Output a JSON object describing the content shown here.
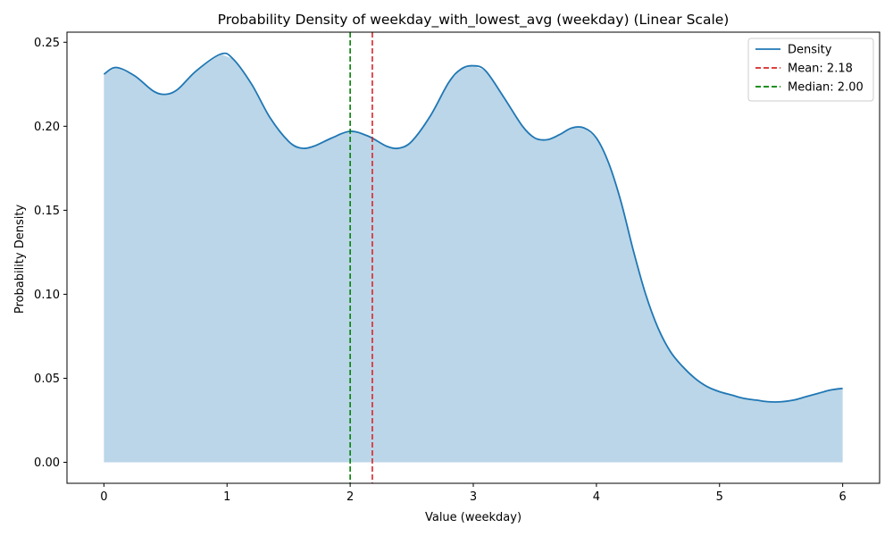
{
  "chart_data": {
    "type": "area",
    "title": "Probability Density of weekday_with_lowest_avg (weekday) (Linear Scale)",
    "xlabel": "Value (weekday)",
    "ylabel": "Probability Density",
    "xlim": [
      -0.3,
      6.3
    ],
    "ylim": [
      -0.0125,
      0.256
    ],
    "x_ticks": [
      0,
      1,
      2,
      3,
      4,
      5,
      6
    ],
    "y_ticks": [
      0.0,
      0.05,
      0.1,
      0.15,
      0.2,
      0.25
    ],
    "x_tick_labels": [
      "0",
      "1",
      "2",
      "3",
      "4",
      "5",
      "6"
    ],
    "y_tick_labels": [
      "0.00",
      "0.05",
      "0.10",
      "0.15",
      "0.20",
      "0.25"
    ],
    "grid": false,
    "legend_position": "top-right",
    "series": [
      {
        "name": "Density",
        "color": "#1f77b4",
        "fill_color": "#bbd6e8",
        "x": [
          0,
          0.1,
          0.25,
          0.4,
          0.5,
          0.6,
          0.75,
          0.95,
          1.05,
          1.2,
          1.35,
          1.5,
          1.6,
          1.7,
          1.85,
          2.0,
          2.15,
          2.3,
          2.4,
          2.5,
          2.65,
          2.8,
          2.9,
          3.0,
          3.1,
          3.25,
          3.4,
          3.5,
          3.6,
          3.7,
          3.8,
          3.9,
          4.0,
          4.1,
          4.2,
          4.3,
          4.4,
          4.5,
          4.6,
          4.7,
          4.8,
          4.9,
          5.0,
          5.1,
          5.2,
          5.3,
          5.4,
          5.5,
          5.6,
          5.7,
          5.8,
          5.9,
          6.0
        ],
        "values": [
          0.231,
          0.235,
          0.23,
          0.221,
          0.219,
          0.222,
          0.233,
          0.243,
          0.24,
          0.225,
          0.205,
          0.191,
          0.187,
          0.188,
          0.193,
          0.197,
          0.194,
          0.188,
          0.187,
          0.191,
          0.206,
          0.226,
          0.234,
          0.236,
          0.233,
          0.217,
          0.2,
          0.193,
          0.192,
          0.195,
          0.199,
          0.199,
          0.193,
          0.178,
          0.155,
          0.126,
          0.1,
          0.08,
          0.066,
          0.057,
          0.05,
          0.045,
          0.042,
          0.04,
          0.038,
          0.037,
          0.036,
          0.036,
          0.037,
          0.039,
          0.041,
          0.043,
          0.044
        ]
      }
    ],
    "reference_lines": [
      {
        "name": "Mean: 2.18",
        "x": 2.18,
        "color": "#d62728",
        "style": "dashed"
      },
      {
        "name": "Median: 2.00",
        "x": 2.0,
        "color": "#008000",
        "style": "dashed"
      }
    ]
  }
}
